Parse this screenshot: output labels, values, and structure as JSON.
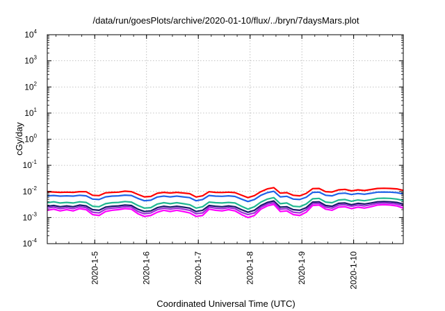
{
  "chart_data": {
    "type": "line",
    "title": "/data/run/goesPlots/archive/2020-01-10/flux/../bryn/7daysMars.plot",
    "xlabel": "Coordinated Universal Time (UTC)",
    "ylabel": "cGy/day",
    "x_scale": "time",
    "y_scale": "log",
    "xlim": [
      "2020-01-04T02:00",
      "2020-01-10T23:00"
    ],
    "ylim": [
      0.0001,
      10000
    ],
    "grid": true,
    "legend": "none",
    "x_tick_labels": [
      "2020-1-5",
      "2020-1-6",
      "2020-1-7",
      "2020-1-8",
      "2020-1-9",
      "2020-1-10"
    ],
    "x_ticks": [
      "2020-01-05",
      "2020-01-06",
      "2020-01-07",
      "2020-01-08",
      "2020-01-09",
      "2020-01-10"
    ],
    "y_ticks": [
      {
        "base": "10",
        "exp": "-4",
        "value": 0.0001
      },
      {
        "base": "10",
        "exp": "-3",
        "value": 0.001
      },
      {
        "base": "10",
        "exp": "-2",
        "value": 0.01
      },
      {
        "base": "10",
        "exp": "-1",
        "value": 0.1
      },
      {
        "base": "10",
        "exp": "0",
        "value": 1
      },
      {
        "base": "10",
        "exp": "1",
        "value": 10
      },
      {
        "base": "10",
        "exp": "2",
        "value": 100
      },
      {
        "base": "10",
        "exp": "3",
        "value": 1000
      },
      {
        "base": "10",
        "exp": "4",
        "value": 10000
      }
    ],
    "x": [
      "2020-01-04T02:00",
      "2020-01-04T05:00",
      "2020-01-04T08:00",
      "2020-01-04T11:00",
      "2020-01-04T14:00",
      "2020-01-04T17:00",
      "2020-01-04T20:00",
      "2020-01-04T23:00",
      "2020-01-05T02:00",
      "2020-01-05T05:00",
      "2020-01-05T08:00",
      "2020-01-05T11:00",
      "2020-01-05T14:00",
      "2020-01-05T17:00",
      "2020-01-05T20:00",
      "2020-01-05T23:00",
      "2020-01-06T02:00",
      "2020-01-06T05:00",
      "2020-01-06T08:00",
      "2020-01-06T11:00",
      "2020-01-06T14:00",
      "2020-01-06T17:00",
      "2020-01-06T20:00",
      "2020-01-06T23:00",
      "2020-01-07T02:00",
      "2020-01-07T05:00",
      "2020-01-07T08:00",
      "2020-01-07T11:00",
      "2020-01-07T14:00",
      "2020-01-07T17:00",
      "2020-01-07T20:00",
      "2020-01-07T23:00",
      "2020-01-08T02:00",
      "2020-01-08T05:00",
      "2020-01-08T08:00",
      "2020-01-08T11:00",
      "2020-01-08T14:00",
      "2020-01-08T17:00",
      "2020-01-08T20:00",
      "2020-01-08T23:00",
      "2020-01-09T02:00",
      "2020-01-09T05:00",
      "2020-01-09T08:00",
      "2020-01-09T11:00",
      "2020-01-09T14:00",
      "2020-01-09T17:00",
      "2020-01-09T20:00",
      "2020-01-09T23:00",
      "2020-01-10T02:00",
      "2020-01-10T05:00",
      "2020-01-10T08:00",
      "2020-01-10T11:00",
      "2020-01-10T14:00",
      "2020-01-10T17:00",
      "2020-01-10T20:00",
      "2020-01-10T23:00"
    ],
    "series": [
      {
        "color": "#ff0000",
        "values": [
          0.0098,
          0.0095,
          0.0092,
          0.0094,
          0.0092,
          0.0098,
          0.0097,
          0.0071,
          0.0069,
          0.0088,
          0.0092,
          0.0094,
          0.0102,
          0.0098,
          0.0077,
          0.0062,
          0.0064,
          0.0085,
          0.0092,
          0.0087,
          0.0092,
          0.0087,
          0.0082,
          0.0061,
          0.0068,
          0.0097,
          0.0092,
          0.0091,
          0.0094,
          0.009,
          0.0072,
          0.0058,
          0.0069,
          0.0098,
          0.0125,
          0.014,
          0.0086,
          0.009,
          0.0071,
          0.0068,
          0.0084,
          0.0128,
          0.013,
          0.0098,
          0.0095,
          0.0115,
          0.012,
          0.0105,
          0.0115,
          0.0108,
          0.0118,
          0.013,
          0.0132,
          0.013,
          0.0125,
          0.011
        ]
      },
      {
        "color": "#1f63e8",
        "values": [
          0.0068,
          0.007,
          0.0066,
          0.0068,
          0.0066,
          0.0071,
          0.0068,
          0.0051,
          0.0049,
          0.0062,
          0.0066,
          0.0068,
          0.0072,
          0.007,
          0.0054,
          0.0044,
          0.0046,
          0.0061,
          0.0066,
          0.0062,
          0.0066,
          0.0062,
          0.0058,
          0.0044,
          0.0049,
          0.007,
          0.0066,
          0.0065,
          0.0068,
          0.0064,
          0.0051,
          0.0041,
          0.0049,
          0.0071,
          0.009,
          0.0101,
          0.0062,
          0.0065,
          0.0051,
          0.0049,
          0.006,
          0.0092,
          0.0094,
          0.0071,
          0.0068,
          0.0083,
          0.0086,
          0.0076,
          0.0083,
          0.0078,
          0.0085,
          0.0094,
          0.0095,
          0.0094,
          0.009,
          0.008
        ]
      },
      {
        "color": "#20b890",
        "values": [
          0.0037,
          0.004,
          0.0036,
          0.0038,
          0.0036,
          0.004,
          0.0038,
          0.0027,
          0.0026,
          0.0034,
          0.0037,
          0.0038,
          0.0041,
          0.0039,
          0.0029,
          0.0023,
          0.0024,
          0.0033,
          0.0037,
          0.0034,
          0.0037,
          0.0034,
          0.0031,
          0.0023,
          0.0026,
          0.0039,
          0.0037,
          0.0036,
          0.0038,
          0.0036,
          0.0027,
          0.0021,
          0.0026,
          0.0039,
          0.0051,
          0.0058,
          0.0034,
          0.0036,
          0.0027,
          0.0026,
          0.0033,
          0.0052,
          0.0054,
          0.0039,
          0.0037,
          0.0047,
          0.0049,
          0.0042,
          0.0047,
          0.0044,
          0.0048,
          0.0054,
          0.0055,
          0.0054,
          0.0051,
          0.0045
        ]
      },
      {
        "color": "#1a1a6b",
        "values": [
          0.0027,
          0.0029,
          0.0026,
          0.0028,
          0.0026,
          0.003,
          0.0028,
          0.002,
          0.0019,
          0.0025,
          0.0027,
          0.0028,
          0.003,
          0.0029,
          0.0021,
          0.0017,
          0.0018,
          0.0024,
          0.0027,
          0.0025,
          0.0027,
          0.0025,
          0.0023,
          0.0017,
          0.0019,
          0.0029,
          0.0027,
          0.0026,
          0.0028,
          0.0026,
          0.002,
          0.0016,
          0.0019,
          0.0029,
          0.0038,
          0.0043,
          0.0025,
          0.0026,
          0.002,
          0.0019,
          0.0024,
          0.0039,
          0.004,
          0.0029,
          0.0027,
          0.0035,
          0.0036,
          0.0031,
          0.0035,
          0.0033,
          0.0036,
          0.004,
          0.0041,
          0.004,
          0.0038,
          0.0033
        ]
      },
      {
        "color": "#9b2fd6",
        "values": [
          0.0023,
          0.0025,
          0.0022,
          0.0024,
          0.0022,
          0.0026,
          0.0024,
          0.0016,
          0.0015,
          0.0021,
          0.0023,
          0.0024,
          0.0026,
          0.0025,
          0.0017,
          0.0014,
          0.0015,
          0.002,
          0.0023,
          0.0021,
          0.0023,
          0.0021,
          0.0019,
          0.0014,
          0.0015,
          0.0025,
          0.0023,
          0.0022,
          0.0024,
          0.0022,
          0.0016,
          0.0013,
          0.0015,
          0.0025,
          0.0033,
          0.0037,
          0.0021,
          0.0022,
          0.0016,
          0.0015,
          0.002,
          0.0034,
          0.0035,
          0.0025,
          0.0023,
          0.003,
          0.0031,
          0.0027,
          0.003,
          0.0028,
          0.0031,
          0.0035,
          0.0036,
          0.0035,
          0.0033,
          0.0028
        ]
      },
      {
        "color": "#ff00ff",
        "values": [
          0.0019,
          0.0021,
          0.0018,
          0.002,
          0.0018,
          0.0022,
          0.002,
          0.0013,
          0.0012,
          0.0017,
          0.0019,
          0.002,
          0.0022,
          0.0021,
          0.0014,
          0.0011,
          0.0012,
          0.0016,
          0.0019,
          0.0017,
          0.0019,
          0.0017,
          0.0015,
          0.0011,
          0.0012,
          0.0021,
          0.0019,
          0.0018,
          0.002,
          0.0018,
          0.0013,
          0.001,
          0.0012,
          0.0021,
          0.0028,
          0.0032,
          0.0017,
          0.0018,
          0.0013,
          0.0012,
          0.0016,
          0.0029,
          0.003,
          0.0021,
          0.0019,
          0.0025,
          0.0026,
          0.0022,
          0.0025,
          0.0023,
          0.0026,
          0.003,
          0.0031,
          0.003,
          0.0028,
          0.0023
        ]
      }
    ]
  }
}
